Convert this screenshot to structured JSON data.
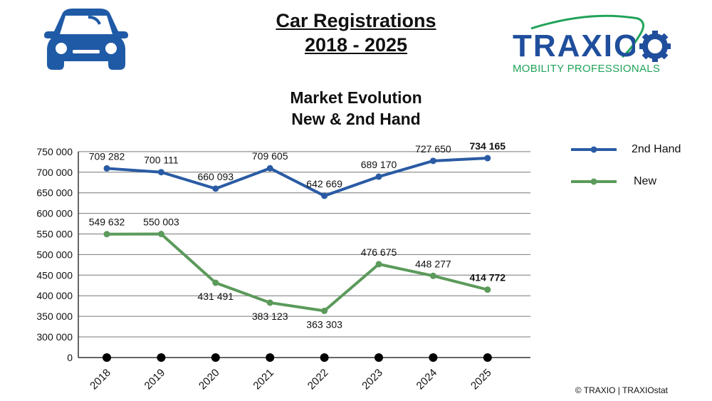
{
  "header": {
    "title_line1": "Car Registrations",
    "title_line2": "2018 - 2025",
    "logo_text": "TRAXIO",
    "logo_tagline": "MOBILITY PROFESSIONALS",
    "car_icon": "car-front-icon"
  },
  "footer": {
    "copyright": "© TRAXIO | TRAXIOstat"
  },
  "colors": {
    "second_hand": "#2a5ba4",
    "new": "#5b9a5b",
    "baseline_marker": "#000000",
    "logo_blue": "#1f4e9c",
    "logo_green": "#21a35a"
  },
  "chart_data": {
    "type": "line",
    "title_line1": "Market Evolution",
    "title_line2": "New & 2nd Hand",
    "categories": [
      "2018",
      "2019",
      "2020",
      "2021",
      "2022",
      "2023",
      "2024",
      "2025"
    ],
    "yticks": [
      "0",
      "300 000",
      "350 000",
      "400 000",
      "450 000",
      "500 000",
      "550 000",
      "600 000",
      "650 000",
      "700 000",
      "750 000"
    ],
    "ylim": [
      0,
      750000
    ],
    "axis_break": [
      0,
      300000
    ],
    "grid": true,
    "legend_position": "right",
    "series": [
      {
        "name": "2nd Hand",
        "values": [
          709282,
          700111,
          660093,
          709605,
          642669,
          689170,
          727650,
          734165
        ],
        "labels": [
          "709 282",
          "700 111",
          "660 093",
          "709 605",
          "642 669",
          "689 170",
          "727 650",
          "734 165"
        ]
      },
      {
        "name": "New",
        "values": [
          549632,
          550003,
          431491,
          383123,
          363303,
          476675,
          448277,
          414772
        ],
        "labels": [
          "549 632",
          "550 003",
          "431 491",
          "383 123",
          "363 303",
          "476 675",
          "448 277",
          "414 772"
        ]
      }
    ]
  }
}
